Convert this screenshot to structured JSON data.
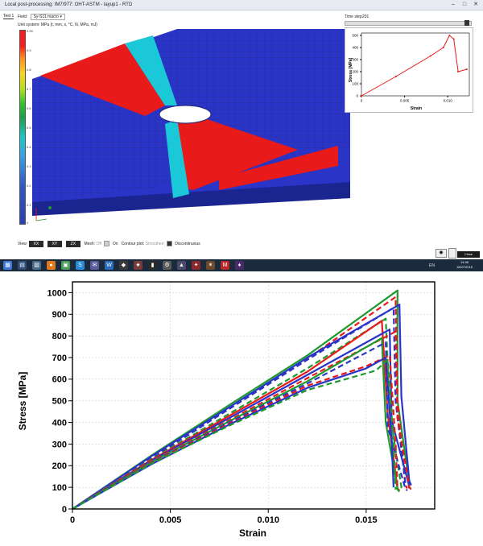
{
  "window": {
    "title": "Local post-processing: IM7/977: OHT-ASTM - layup1 - RTD"
  },
  "tabs": [
    {
      "label": "Test 1"
    }
  ],
  "field": {
    "label": "Field:",
    "value": "Sy-S11 macro"
  },
  "unit_system": "Unit system: MPa (t, mm, s, °C, N, MPa, mJ)",
  "colorbar": {
    "ticks": [
      "0.99",
      "0.9",
      "0.8",
      "0.7",
      "0.6",
      "0.5",
      "0.4",
      "0.3",
      "0.2",
      "0.1",
      "0"
    ]
  },
  "time_step": {
    "label": "Time step",
    "value": "201",
    "position": 0.96
  },
  "view_bar": {
    "view_label": "View:",
    "buttons": [
      "XX",
      "XY",
      "ZX"
    ],
    "mesh_label": "Mesh:",
    "mesh_off": "Off",
    "mesh_on": "On",
    "contour_label": "Contour plot:",
    "contour_smoothed": "Smoothed",
    "contour_discontinuous": "Discontinuous"
  },
  "close_button": "Close",
  "taskbar": {
    "tray_text": "EN",
    "clock_time": "14:36",
    "clock_date": "15/07/2015"
  },
  "colors": {
    "red": "#e81a1a",
    "blue": "#2a35c8",
    "green": "#1e9a2e",
    "cyan": "#1ac8d8",
    "taskbar": "#1c2a3d"
  },
  "chart_data": [
    {
      "type": "line",
      "ylabel": "Stress [MPa]",
      "xlabel": "Strain",
      "xticks": [
        "0",
        "0.005",
        "0.010"
      ],
      "yticks": [
        "0",
        "100",
        "200",
        "300",
        "400",
        "500"
      ],
      "xlim": [
        0,
        0.0125
      ],
      "ylim": [
        0,
        520
      ],
      "series": [
        {
          "color": "#e81a1a",
          "x": [
            0,
            0.004,
            0.008,
            0.0095,
            0.0102,
            0.0107,
            0.0112,
            0.0122
          ],
          "y": [
            0,
            160,
            330,
            400,
            500,
            470,
            200,
            220
          ]
        }
      ]
    },
    {
      "type": "line",
      "ylabel": "Stress [MPa]",
      "xlabel": "Strain",
      "xticks": [
        "0",
        "0.005",
        "0.010",
        "0.015"
      ],
      "yticks": [
        "0",
        "100",
        "200",
        "300",
        "400",
        "500",
        "600",
        "700",
        "800",
        "900",
        "1000"
      ],
      "xlim": [
        0,
        0.0185
      ],
      "ylim": [
        0,
        1050
      ],
      "grid": true,
      "series": [
        {
          "color": "#1e9a2e",
          "dash": "solid",
          "x": [
            0,
            0.004,
            0.008,
            0.012,
            0.0166,
            0.0166,
            0.0172,
            0.0172
          ],
          "y": [
            0,
            245,
            480,
            710,
            1010,
            500,
            120,
            100
          ]
        },
        {
          "color": "#e81a1a",
          "dash": "dashed",
          "x": [
            0,
            0.004,
            0.008,
            0.012,
            0.0165,
            0.0166,
            0.017,
            0.0171
          ],
          "y": [
            0,
            238,
            468,
            695,
            980,
            500,
            110,
            95
          ]
        },
        {
          "color": "#2a35c8",
          "dash": "solid",
          "x": [
            0,
            0.004,
            0.008,
            0.012,
            0.0167,
            0.0168,
            0.0172,
            0.0173
          ],
          "y": [
            0,
            242,
            470,
            700,
            945,
            520,
            130,
            110
          ]
        },
        {
          "color": "#2a35c8",
          "dash": "dashed",
          "x": [
            0,
            0.004,
            0.008,
            0.012,
            0.0164,
            0.0165,
            0.017,
            0.0171
          ],
          "y": [
            0,
            232,
            462,
            690,
            930,
            500,
            120,
            105
          ]
        },
        {
          "color": "#1e9a2e",
          "dash": "dashed",
          "x": [
            0,
            0.004,
            0.008,
            0.012,
            0.016,
            0.0162,
            0.0168,
            0.0169
          ],
          "y": [
            0,
            228,
            440,
            650,
            880,
            450,
            100,
            90
          ]
        },
        {
          "color": "#e81a1a",
          "dash": "solid",
          "x": [
            0,
            0.004,
            0.008,
            0.012,
            0.0158,
            0.0161,
            0.0166,
            0.0167
          ],
          "y": [
            0,
            225,
            430,
            635,
            870,
            440,
            95,
            85
          ]
        },
        {
          "color": "#2a35c8",
          "dash": "solid",
          "x": [
            0,
            0.004,
            0.008,
            0.012,
            0.0162,
            0.0163,
            0.0172,
            0.0172
          ],
          "y": [
            0,
            222,
            420,
            620,
            830,
            410,
            105,
            95
          ]
        },
        {
          "color": "#e81a1a",
          "dash": "dashed",
          "x": [
            0,
            0.004,
            0.008,
            0.012,
            0.0165,
            0.0166,
            0.0172,
            0.0173
          ],
          "y": [
            0,
            220,
            410,
            605,
            820,
            420,
            100,
            90
          ]
        },
        {
          "color": "#1e9a2e",
          "dash": "solid",
          "x": [
            0,
            0.004,
            0.008,
            0.012,
            0.0158,
            0.016,
            0.0166,
            0.0167
          ],
          "y": [
            0,
            215,
            405,
            590,
            790,
            400,
            90,
            80
          ]
        },
        {
          "color": "#2a35c8",
          "dash": "dashed",
          "x": [
            0,
            0.004,
            0.008,
            0.012,
            0.016,
            0.0161,
            0.017,
            0.0171
          ],
          "y": [
            0,
            212,
            400,
            580,
            770,
            380,
            95,
            85
          ]
        },
        {
          "color": "#e81a1a",
          "dash": "dashed",
          "x": [
            0,
            0.004,
            0.008,
            0.012,
            0.015,
            0.0162,
            0.0165,
            0.0166
          ],
          "y": [
            0,
            210,
            395,
            570,
            660,
            710,
            300,
            95
          ]
        },
        {
          "color": "#2a35c8",
          "dash": "solid",
          "x": [
            0,
            0.004,
            0.008,
            0.012,
            0.015,
            0.016,
            0.0163,
            0.0164
          ],
          "y": [
            0,
            205,
            390,
            560,
            650,
            700,
            320,
            100
          ]
        },
        {
          "color": "#1e9a2e",
          "dash": "dashed",
          "x": [
            0,
            0.004,
            0.008,
            0.012,
            0.0155,
            0.0161,
            0.0164,
            0.0165
          ],
          "y": [
            0,
            208,
            385,
            550,
            640,
            690,
            310,
            90
          ]
        }
      ]
    }
  ]
}
